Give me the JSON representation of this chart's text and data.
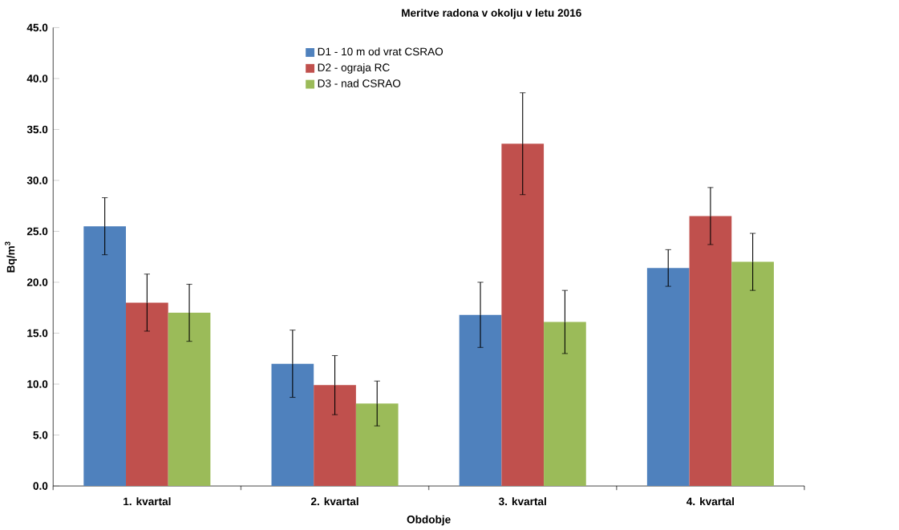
{
  "chart_data": {
    "type": "bar",
    "title": "Meritve radona v okolju v letu 2016",
    "xlabel": "Obdobje",
    "ylabel": "Bq/m$^{3}$",
    "categories": [
      "1. kvartal",
      "2. kvartal",
      "3. kvartal",
      "4. kvartal"
    ],
    "series": [
      {
        "name": "D1 - 10 m od vrat CSRAO",
        "color": "#4f81bd",
        "values": [
          25.5,
          12.0,
          16.8,
          21.4
        ],
        "errors": [
          2.8,
          3.3,
          3.2,
          1.8
        ]
      },
      {
        "name": "D2 - ograja RC",
        "color": "#c0504d",
        "values": [
          18.0,
          9.9,
          33.6,
          26.5
        ],
        "errors": [
          2.8,
          2.9,
          5.0,
          2.8
        ]
      },
      {
        "name": "D3 - nad CSRAO",
        "color": "#9bbb59",
        "values": [
          17.0,
          8.1,
          16.1,
          22.0
        ],
        "errors": [
          2.8,
          2.2,
          3.1,
          2.8
        ]
      }
    ],
    "ylim": [
      0,
      45
    ],
    "yticks": [
      {
        "value": 0,
        "label": "0.0"
      },
      {
        "value": 5,
        "label": "5.0"
      },
      {
        "value": 10,
        "label": "10.0"
      },
      {
        "value": 15,
        "label": "15.0"
      },
      {
        "value": 20,
        "label": "20.0"
      },
      {
        "value": 25,
        "label": "25.0"
      },
      {
        "value": 30,
        "label": "30.0"
      },
      {
        "value": 35,
        "label": "35.0"
      },
      {
        "value": 40,
        "label": "40.0"
      },
      {
        "value": 45,
        "label": "45.0"
      }
    ],
    "legend": "top",
    "grid": false
  }
}
